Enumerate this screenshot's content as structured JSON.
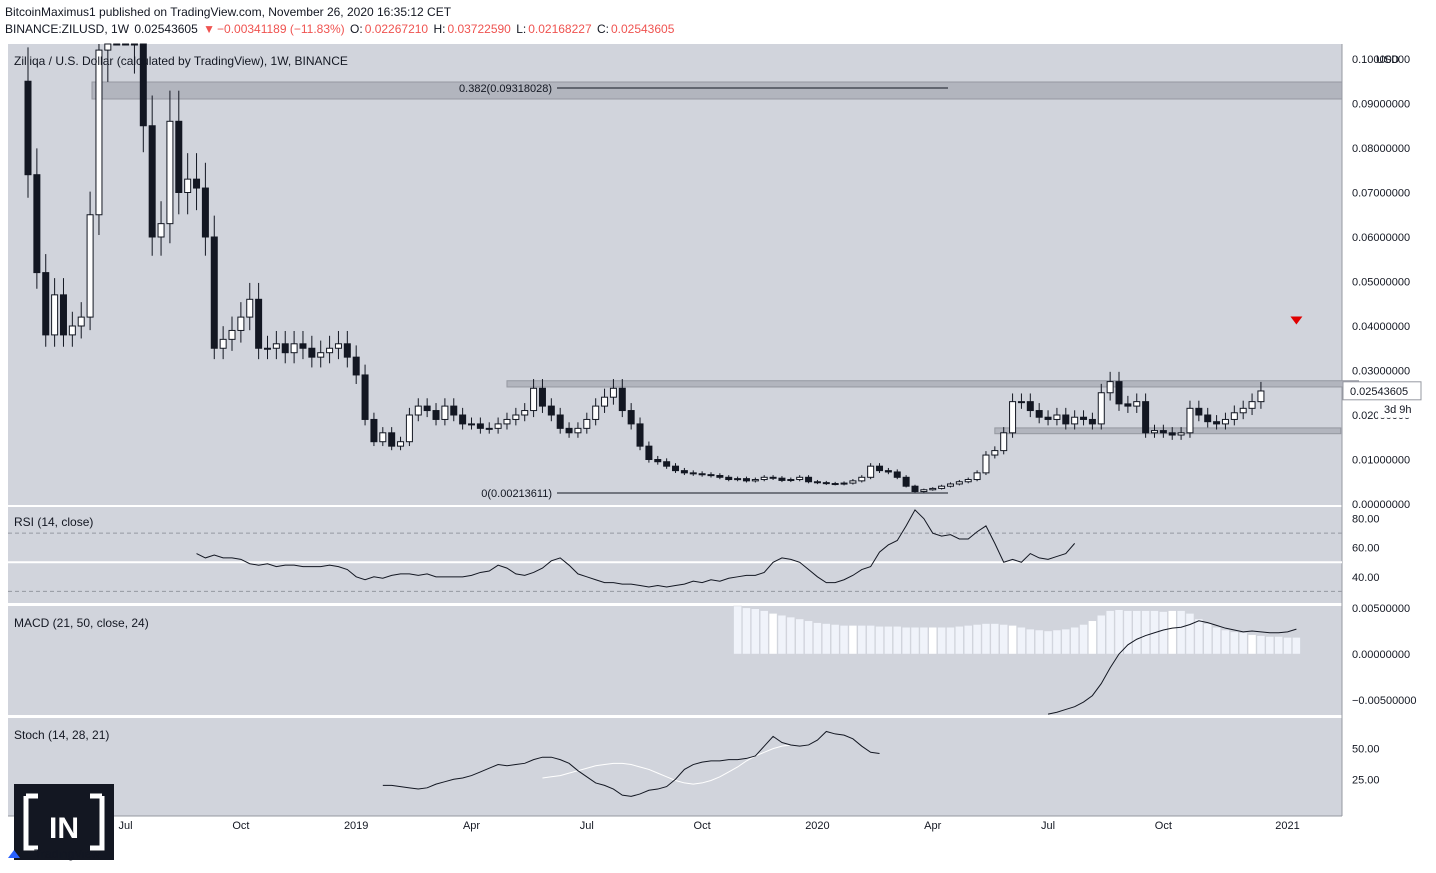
{
  "header": {
    "publisher": "BitcoinMaximus1",
    "published_text": "published on TradingView.com, November 26, 2020 16:35:12 CET",
    "symbol": "BINANCE:ZILUSD, 1W",
    "last": "0.02543605",
    "change_arrow": "▼",
    "change": "−0.00341189 (−11.83%)",
    "o_label": "O:",
    "o": "0.02267210",
    "h_label": "H:",
    "h": "0.03722590",
    "l_label": "L:",
    "l": "0.02168227",
    "c_label": "C:",
    "c": "0.02543605"
  },
  "colors": {
    "bull": "#ffffff",
    "bear": "#131722",
    "pane_bg": "#d1d4dc",
    "marker": "#e00000",
    "zone": "#b2b5be"
  },
  "chart_data": {
    "type": "candlestick",
    "title": "Zilliqa / U.S. Dollar (calculated by TradingView), 1W, BINANCE",
    "currency_label": "USD",
    "ylim": [
      0,
      0.1
    ],
    "y_ticks": [
      "0.10000000",
      "0.09000000",
      "0.08000000",
      "0.07000000",
      "0.06000000",
      "0.05000000",
      "0.04000000",
      "0.03000000",
      "0.02000000",
      "0.01000000",
      "0.00000000"
    ],
    "y_tick_values": [
      0.1,
      0.09,
      0.08,
      0.07,
      0.06,
      0.05,
      0.04,
      0.03,
      0.02,
      0.01,
      0.0
    ],
    "x_ticks": [
      "Jul",
      "Oct",
      "2019",
      "Apr",
      "Jul",
      "Oct",
      "2020",
      "Apr",
      "Jul",
      "Oct",
      "2021"
    ],
    "x_tick_weeks": [
      11,
      24,
      37,
      50,
      63,
      76,
      89,
      102,
      115,
      128,
      142
    ],
    "price_badge": "0.02543605",
    "countdown_badge": "3d 9h",
    "fib_levels": [
      {
        "label": "0.382(0.09318028)",
        "value": 0.09318028
      },
      {
        "label": "0(0.00213611)",
        "value": 0.00213611
      }
    ],
    "zones": [
      {
        "from": 0.0263,
        "to": 0.0277,
        "start_week": 54,
        "end_week": 150
      },
      {
        "from": 0.0158,
        "to": 0.0171,
        "start_week": 109,
        "end_week": 148
      }
    ],
    "closes": [
      0.074,
      0.052,
      0.038,
      0.047,
      0.038,
      0.04,
      0.042,
      0.065,
      0.102,
      0.13,
      0.124,
      0.117,
      0.104,
      0.085,
      0.06,
      0.063,
      0.086,
      0.07,
      0.073,
      0.071,
      0.06,
      0.035,
      0.037,
      0.039,
      0.042,
      0.046,
      0.035,
      0.035,
      0.036,
      0.034,
      0.036,
      0.035,
      0.033,
      0.034,
      0.035,
      0.036,
      0.033,
      0.029,
      0.019,
      0.014,
      0.016,
      0.013,
      0.014,
      0.02,
      0.022,
      0.021,
      0.019,
      0.022,
      0.02,
      0.018,
      0.018,
      0.017,
      0.017,
      0.018,
      0.019,
      0.02,
      0.021,
      0.026,
      0.022,
      0.02,
      0.017,
      0.016,
      0.017,
      0.019,
      0.022,
      0.024,
      0.026,
      0.021,
      0.018,
      0.013,
      0.01,
      0.0095,
      0.0085,
      0.0075,
      0.007,
      0.0068,
      0.0066,
      0.0064,
      0.006,
      0.0055,
      0.0057,
      0.0052,
      0.0055,
      0.006,
      0.0058,
      0.0053,
      0.0055,
      0.006,
      0.005,
      0.0048,
      0.0046,
      0.0045,
      0.0047,
      0.0052,
      0.006,
      0.0085,
      0.0075,
      0.0072,
      0.006,
      0.004,
      0.0028,
      0.0032,
      0.0035,
      0.004,
      0.0045,
      0.005,
      0.0055,
      0.007,
      0.011,
      0.012,
      0.016,
      0.023,
      0.023,
      0.021,
      0.0195,
      0.019,
      0.02,
      0.018,
      0.0195,
      0.019,
      0.018,
      0.025,
      0.0275,
      0.0225,
      0.022,
      0.023,
      0.016,
      0.0165,
      0.016,
      0.0155,
      0.016,
      0.0215,
      0.02,
      0.0185,
      0.018,
      0.019,
      0.0205,
      0.0215,
      0.023,
      0.0254
    ],
    "opens": [
      0.095,
      0.074,
      0.052,
      0.038,
      0.047,
      0.038,
      0.04,
      0.042,
      0.065,
      0.102,
      0.13,
      0.124,
      0.117,
      0.104,
      0.085,
      0.06,
      0.063,
      0.086,
      0.07,
      0.073,
      0.071,
      0.06,
      0.035,
      0.037,
      0.039,
      0.042,
      0.046,
      0.035,
      0.035,
      0.036,
      0.034,
      0.036,
      0.035,
      0.033,
      0.034,
      0.035,
      0.036,
      0.033,
      0.029,
      0.019,
      0.014,
      0.016,
      0.013,
      0.014,
      0.02,
      0.022,
      0.021,
      0.019,
      0.022,
      0.02,
      0.018,
      0.018,
      0.017,
      0.017,
      0.018,
      0.019,
      0.02,
      0.021,
      0.026,
      0.022,
      0.02,
      0.017,
      0.016,
      0.017,
      0.019,
      0.022,
      0.024,
      0.026,
      0.021,
      0.018,
      0.013,
      0.01,
      0.0095,
      0.0085,
      0.0075,
      0.007,
      0.0068,
      0.0066,
      0.0064,
      0.006,
      0.0055,
      0.0057,
      0.0052,
      0.0055,
      0.006,
      0.0058,
      0.0053,
      0.0055,
      0.006,
      0.005,
      0.0048,
      0.0046,
      0.0045,
      0.0047,
      0.0052,
      0.006,
      0.0085,
      0.0075,
      0.0072,
      0.006,
      0.004,
      0.0028,
      0.0032,
      0.0035,
      0.004,
      0.0045,
      0.005,
      0.0055,
      0.007,
      0.011,
      0.012,
      0.016,
      0.023,
      0.023,
      0.021,
      0.0195,
      0.019,
      0.02,
      0.018,
      0.0195,
      0.019,
      0.018,
      0.025,
      0.0275,
      0.0225,
      0.022,
      0.023,
      0.016,
      0.0165,
      0.016,
      0.0155,
      0.016,
      0.0215,
      0.02,
      0.0185,
      0.018,
      0.019,
      0.0205,
      0.0215,
      0.023
    ],
    "rsi": {
      "label": "RSI (14, close)",
      "y_ticks": [
        "80.00",
        "60.00",
        "40.00"
      ],
      "y_tick_values": [
        80,
        60,
        40
      ],
      "bands": [
        70,
        50,
        30
      ],
      "ylim": [
        22,
        88
      ],
      "start_week": 19,
      "values": [
        56,
        53,
        55,
        53,
        53,
        52,
        49,
        48,
        49,
        47,
        48,
        48,
        47,
        47,
        47,
        48,
        47,
        45,
        40,
        38,
        40,
        39,
        41,
        42,
        42,
        41,
        42,
        40,
        40,
        40,
        40,
        41,
        43,
        44,
        48,
        46,
        42,
        41,
        43,
        46,
        51,
        53,
        48,
        42,
        40,
        38,
        36,
        36,
        35,
        35,
        34,
        33,
        34,
        33,
        34,
        35,
        37,
        36,
        38,
        37,
        39,
        40,
        41,
        41,
        43,
        50,
        53,
        52,
        50,
        45,
        40,
        36,
        36,
        38,
        41,
        45,
        47,
        57,
        62,
        65,
        75,
        86,
        80,
        70,
        68,
        69,
        66,
        66,
        71,
        75,
        63,
        50,
        52,
        50,
        56,
        53,
        52,
        54,
        56,
        63
      ]
    },
    "macd": {
      "label": "MACD (21, 50, close, 24)",
      "y_ticks": [
        "0.00500000",
        "0.00000000",
        "−0.00500000"
      ],
      "y_tick_values": [
        0.005,
        0.0,
        -0.005
      ],
      "ylim": [
        -0.0066,
        0.0052
      ],
      "hist_start_week": 80,
      "histogram": [
        0.0052,
        0.005,
        0.0049,
        0.0047,
        0.0044,
        0.0042,
        0.004,
        0.0038,
        0.0036,
        0.0034,
        0.0033,
        0.0032,
        0.0031,
        0.0031,
        0.0031,
        0.0031,
        0.003,
        0.003,
        0.003,
        0.0029,
        0.0029,
        0.0029,
        0.0029,
        0.0029,
        0.0029,
        0.003,
        0.0031,
        0.0032,
        0.0033,
        0.0033,
        0.0032,
        0.0031,
        0.0029,
        0.0027,
        0.0026,
        0.0025,
        0.0026,
        0.0027,
        0.0029,
        0.0032,
        0.0036,
        0.0042,
        0.0047,
        0.0048,
        0.0047,
        0.0047,
        0.0047,
        0.0047,
        0.0046,
        0.0047,
        0.0047,
        0.0044,
        0.0038,
        0.0033,
        0.0029,
        0.0026,
        0.0024,
        0.0023,
        0.0021,
        0.002,
        0.0019,
        0.0019,
        0.0018,
        0.0018
      ],
      "line_start_week": 115,
      "line": [
        -0.0065,
        -0.0063,
        -0.006,
        -0.0057,
        -0.0052,
        -0.0045,
        -0.0032,
        -0.0015,
        0.0,
        0.001,
        0.0016,
        0.002,
        0.0023,
        0.0026,
        0.0028,
        0.0029,
        0.0032,
        0.0036,
        0.0034,
        0.0031,
        0.0028,
        0.0026,
        0.0024,
        0.0025,
        0.0024,
        0.0023,
        0.0023,
        0.0024,
        0.0027
      ]
    },
    "stoch": {
      "label": "Stoch (14, 28, 21)",
      "y_ticks": [
        "50.00",
        "25.00"
      ],
      "y_tick_values": [
        50,
        25
      ],
      "ylim": [
        -5,
        75
      ],
      "k_start_week": 40,
      "k": [
        20,
        20,
        19,
        18,
        17,
        18,
        21,
        23,
        25,
        26,
        28,
        31,
        34,
        37,
        36,
        37,
        38,
        41,
        43,
        43,
        41,
        38,
        32,
        27,
        22,
        20,
        17,
        12,
        11,
        13,
        16,
        17,
        19,
        25,
        33,
        37,
        39,
        40,
        40,
        41,
        41,
        42,
        44,
        52,
        60,
        55,
        53,
        52,
        53,
        57,
        64,
        62,
        61,
        58,
        52,
        47,
        46
      ],
      "d_start_week": 58,
      "d": [
        26,
        27,
        28,
        30,
        32,
        34,
        36,
        37,
        38,
        38,
        37,
        35,
        33,
        30,
        27,
        24,
        22,
        21,
        22,
        24,
        27,
        31,
        35,
        40,
        44,
        47,
        50,
        52,
        53
      ]
    },
    "annotations": [
      {
        "type": "down-arrow-marker",
        "week": 143,
        "value": 0.041
      }
    ]
  },
  "watermark": {
    "logo_text": "IN",
    "tradingview": "TradingView"
  }
}
